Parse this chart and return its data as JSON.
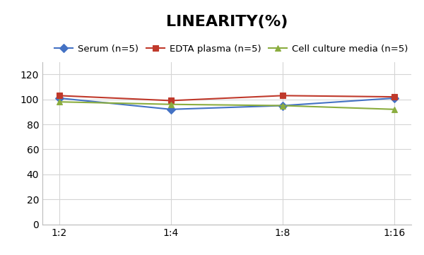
{
  "title": "LINEARITY(%)",
  "title_fontsize": 16,
  "title_fontweight": "bold",
  "x_labels": [
    "1:2",
    "1:4",
    "1:8",
    "1:16"
  ],
  "x_values": [
    0,
    1,
    2,
    3
  ],
  "series": [
    {
      "label": "Serum (n=5)",
      "values": [
        101,
        92,
        95,
        101
      ],
      "color": "#4472C4",
      "marker": "D",
      "markersize": 6,
      "linewidth": 1.5
    },
    {
      "label": "EDTA plasma (n=5)",
      "values": [
        103,
        99,
        103,
        102
      ],
      "color": "#C0392B",
      "marker": "s",
      "markersize": 6,
      "linewidth": 1.5
    },
    {
      "label": "Cell culture media (n=5)",
      "values": [
        98,
        96,
        95,
        92
      ],
      "color": "#8BAD3F",
      "marker": "^",
      "markersize": 6,
      "linewidth": 1.5
    }
  ],
  "ylim": [
    0,
    130
  ],
  "yticks": [
    0,
    20,
    40,
    60,
    80,
    100,
    120
  ],
  "background_color": "#ffffff",
  "plot_bg_color": "#ffffff",
  "grid_color": "#d5d5d5",
  "legend_fontsize": 9.5,
  "tick_labelsize": 10,
  "figsize": [
    6.0,
    3.61
  ],
  "dpi": 100
}
